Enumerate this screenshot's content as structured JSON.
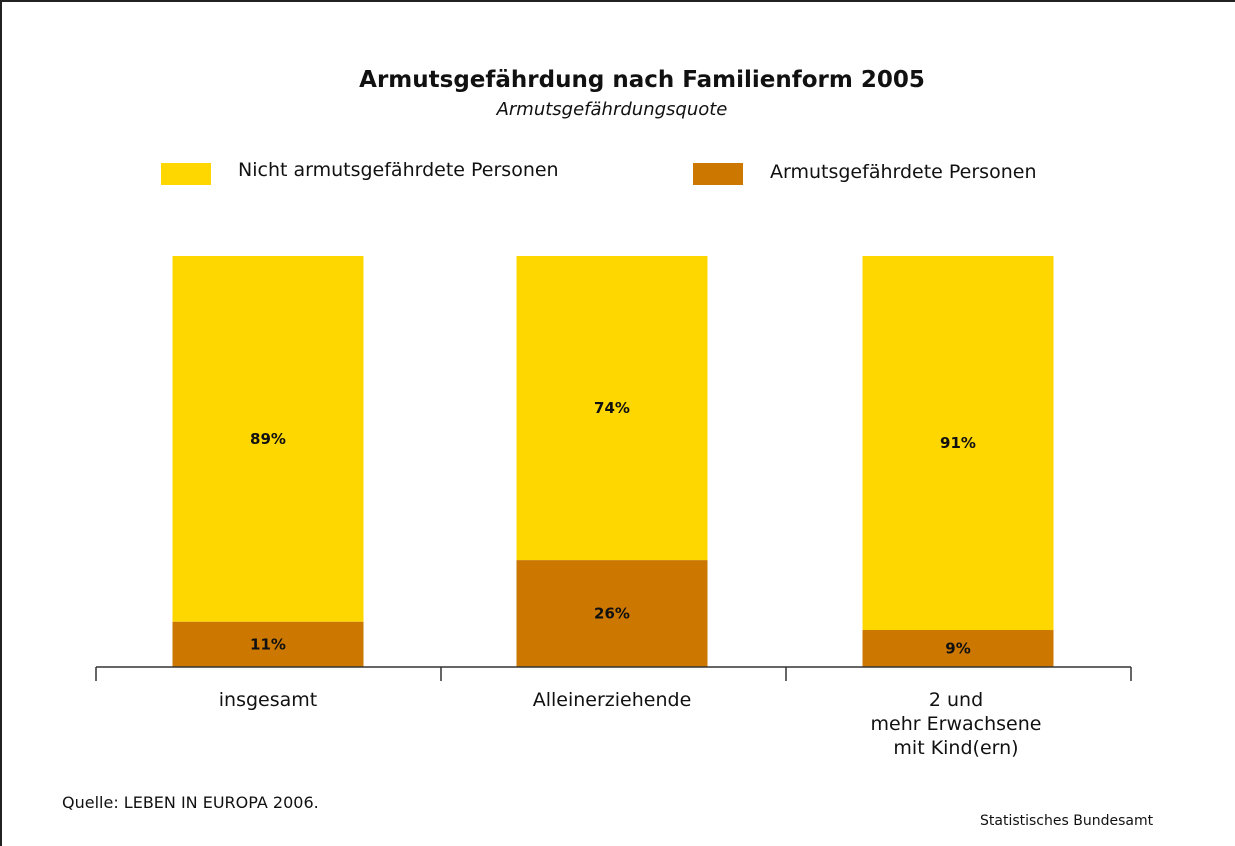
{
  "colors": {
    "not_at_risk": "#FFD700",
    "at_risk": "#CC7700",
    "axis": "#333333"
  },
  "chart_data": {
    "type": "bar",
    "stacked": true,
    "title": "Armutsgefährdung nach Familienform 2005",
    "subtitle": "Armutsgefährdungsquote",
    "categories": [
      "insgesamt",
      "Alleinerziehende",
      "2 und\nmehr Erwachsene\nmit Kind(ern)"
    ],
    "series": [
      {
        "name": "Armutsgefährdete Personen",
        "values": [
          11,
          26,
          9
        ],
        "labels": [
          "11%",
          "26%",
          "9%"
        ]
      },
      {
        "name": "Nicht armutsgefährdete Personen",
        "values": [
          89,
          74,
          91
        ],
        "labels": [
          "89%",
          "74%",
          "91%"
        ]
      }
    ],
    "ylim": [
      0,
      100
    ],
    "unit": "%",
    "grid": false,
    "legend_position": "top"
  },
  "legend": {
    "not_at_risk": "Nicht armutsgefährdete Personen",
    "at_risk": "Armutsgefährdete Personen"
  },
  "footer": {
    "source": "Quelle: LEBEN IN EUROPA 2006.",
    "publisher": "Statistisches Bundesamt"
  }
}
